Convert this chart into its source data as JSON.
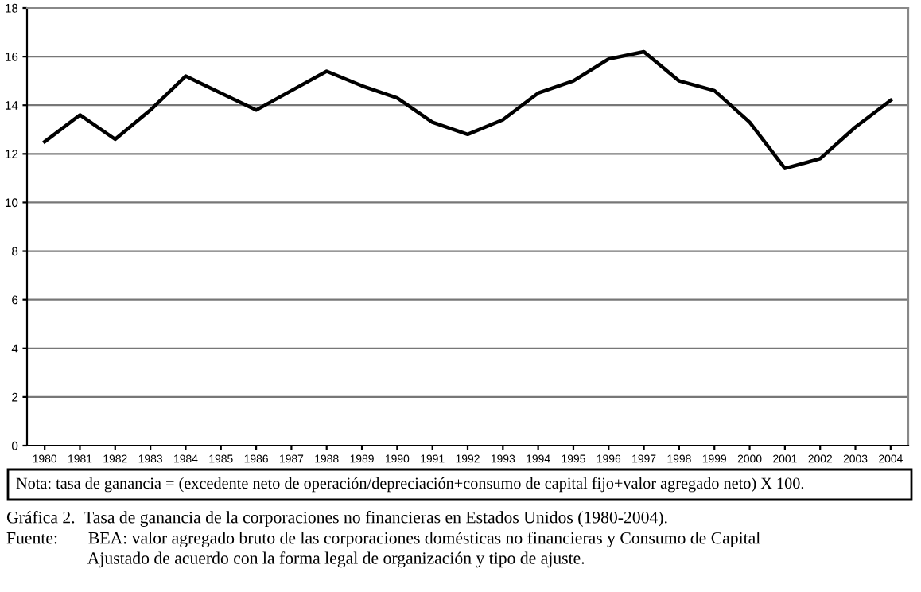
{
  "chart_data": {
    "type": "line",
    "title": "Gráfica 2.  Tasa de ganancia de la corporaciones no financieras en Estados Unidos (1980-2004).",
    "annotations": [
      "Nota: tasa de ganancia = (excedente neto de operación/depreciación+consumo de capital fijo+valor agregado neto) X 100.",
      "Fuente:       BEA: valor agregado bruto de las corporaciones domésticas no financieras y Consumo de Capital\n                   Ajustado de acuerdo con la forma legal de organización y tipo de ajuste."
    ],
    "categories": [
      "1980",
      "1981",
      "1982",
      "1983",
      "1984",
      "1985",
      "1986",
      "1987",
      "1988",
      "1989",
      "1990",
      "1991",
      "1992",
      "1993",
      "1994",
      "1995",
      "1996",
      "1997",
      "1998",
      "1999",
      "2000",
      "2001",
      "2002",
      "2003",
      "2004"
    ],
    "series": [
      {
        "color": "#000000",
        "values": [
          12.5,
          13.6,
          12.6,
          13.8,
          15.2,
          14.5,
          13.8,
          14.6,
          15.4,
          14.8,
          14.3,
          13.3,
          12.8,
          13.4,
          14.5,
          15.0,
          15.9,
          16.2,
          15.0,
          14.6,
          13.3,
          11.4,
          11.8,
          13.1,
          14.2
        ]
      }
    ],
    "ylim": [
      0,
      18
    ],
    "yticks": [
      0,
      2,
      4,
      6,
      8,
      10,
      12,
      14,
      16,
      18
    ],
    "grid": "y",
    "legend": false,
    "marker": "none",
    "line_style": "solid"
  }
}
